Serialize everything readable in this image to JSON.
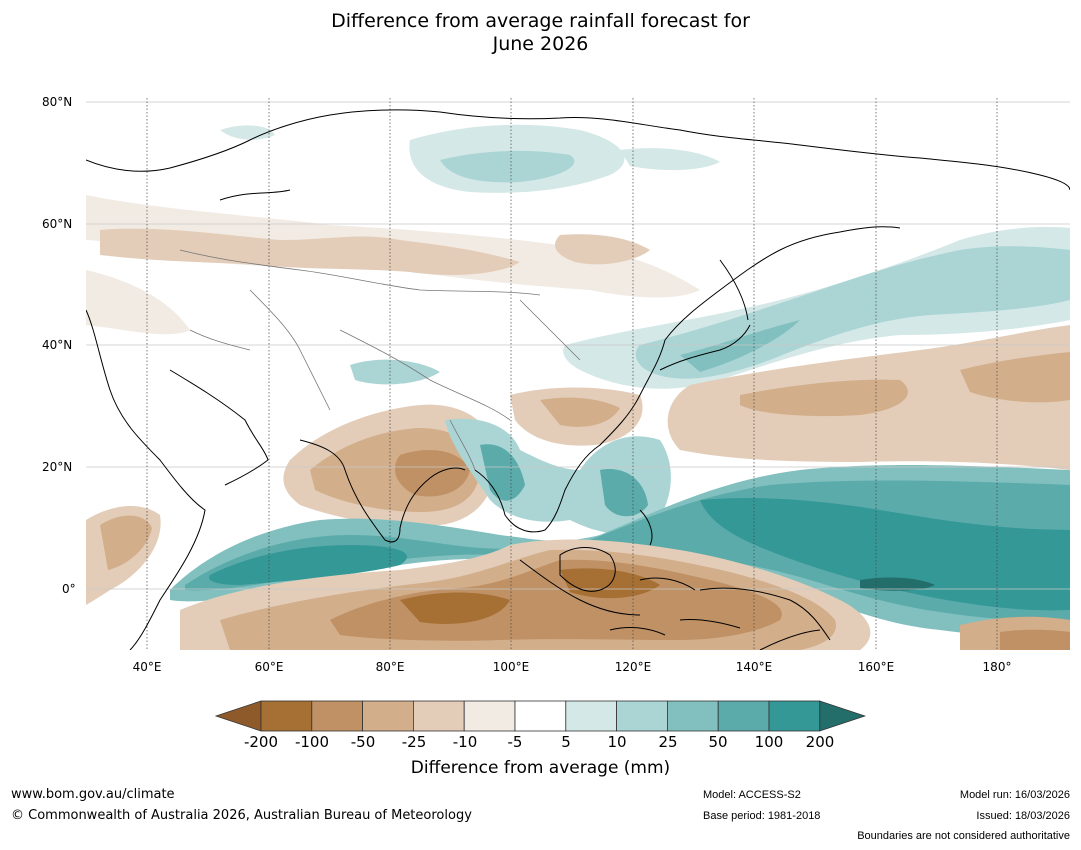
{
  "title_line1": "Difference from average rainfall forecast for",
  "title_line2": "June 2026",
  "lat_ticks": [
    "80°N",
    "60°N",
    "40°N",
    "20°N",
    "0°"
  ],
  "lon_ticks": [
    "40°E",
    "60°E",
    "80°E",
    "100°E",
    "120°E",
    "140°E",
    "160°E",
    "180°"
  ],
  "colorbar": {
    "title": "Difference from average (mm)",
    "labels": [
      "-200",
      "-100",
      "-50",
      "-25",
      "-10",
      "-5",
      "5",
      "10",
      "25",
      "50",
      "100",
      "200"
    ],
    "colors": [
      "#a66f34",
      "#bf9165",
      "#d2ae8b",
      "#e3cdb8",
      "#f1ebe4",
      "#ffffff",
      "#d4e8e7",
      "#abd5d5",
      "#81c0bf",
      "#5aabaa",
      "#349896",
      "#236e6b"
    ],
    "under_color": "#8e5a2a"
  },
  "footer": {
    "website": "www.bom.gov.au/climate",
    "copyright": "© Commonwealth of Australia 2026, Australian Bureau of Meteorology",
    "model": "Model: ACCESS-S2",
    "base_period": "Base period: 1981-2018",
    "model_run": "Model run: 16/03/2026",
    "issued": "Issued: 18/03/2026",
    "disclaimer": "Boundaries are not considered authoritative"
  }
}
